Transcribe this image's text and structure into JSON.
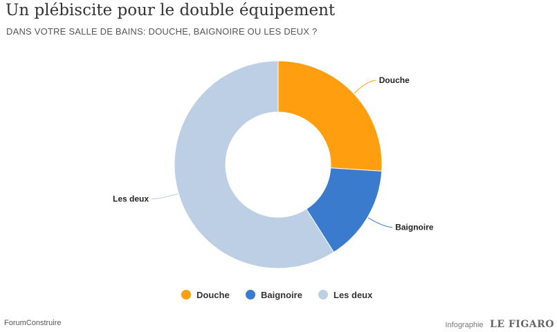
{
  "title": "Un plébiscite pour le double équipement",
  "subtitle": "DANS VOTRE SALLE DE BAINS: DOUCHE, BAIGNOIRE OU LES DEUX ?",
  "source": "ForumConstruire",
  "credit": {
    "prefix": "Infographie",
    "brand": "LE FIGARO"
  },
  "chart_data": {
    "type": "pie",
    "variant": "donut",
    "title": "Un plébiscite pour le double équipement",
    "subtitle": "DANS VOTRE SALLE DE BAINS: DOUCHE, BAIGNOIRE OU LES DEUX ?",
    "categories": [
      "Douche",
      "Baignoire",
      "Les deux"
    ],
    "values": [
      26,
      15,
      59
    ],
    "colors": [
      "#ff9f10",
      "#3b7bce",
      "#bccfe5"
    ],
    "legend": "bottom-center"
  }
}
